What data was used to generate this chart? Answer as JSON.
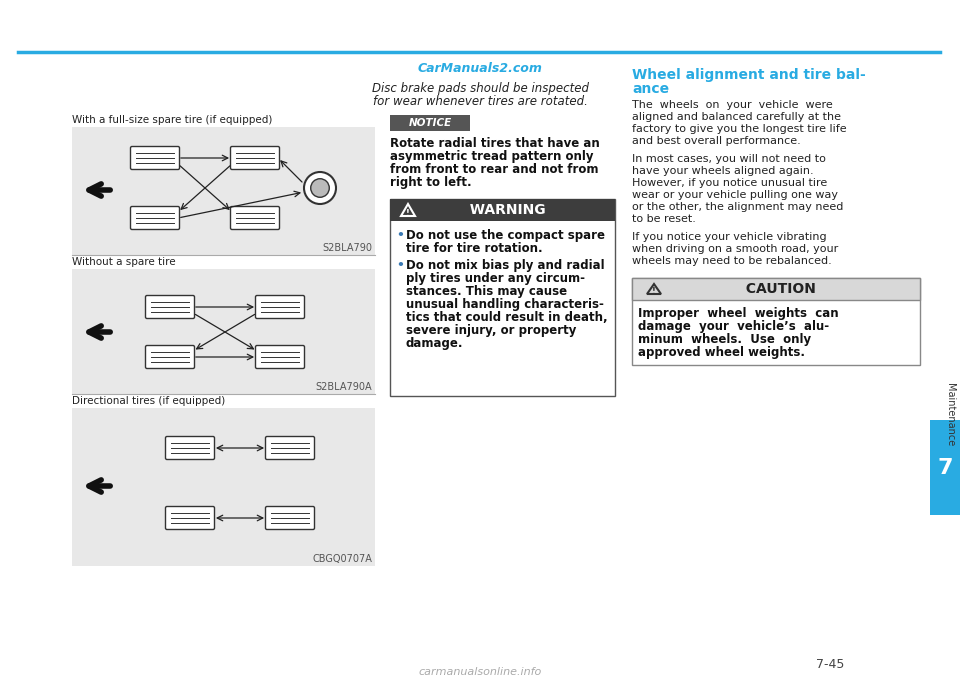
{
  "bg_color": "#ffffff",
  "top_line_color": "#29abe2",
  "right_tab_color": "#29abe2",
  "page_number": "7-45",
  "watermark_text": "CarManuals2.com",
  "watermark_color": "#29abe2",
  "italic_line1": "Disc brake pads should be inspected",
  "italic_line2": "for wear whenever tires are rotated.",
  "section1_label": "With a full-size spare tire (if equipped)",
  "section1_code": "S2BLA790",
  "section2_label": "Without a spare tire",
  "section2_code": "S2BLA790A",
  "section3_label": "Directional tires (if equipped)",
  "section3_code": "CBGQ0707A",
  "notice_text": "NOTICE",
  "notice_body_lines": [
    "Rotate radial tires that have an",
    "asymmetric tread pattern only",
    "from front to rear and not from",
    "right to left."
  ],
  "warning_title": "  WARNING",
  "warning_bullet1_lines": [
    "Do not use the compact spare",
    "tire for tire rotation."
  ],
  "warning_bullet2_lines": [
    "Do not mix bias ply and radial",
    "ply tires under any circum-",
    "stances. This may cause",
    "unusual handling characteris-",
    "tics that could result in death,",
    "severe injury, or property",
    "damage."
  ],
  "right_heading_line1": "Wheel alignment and tire bal-",
  "right_heading_line2": "ance",
  "right_heading_color": "#29abe2",
  "right_para1_lines": [
    "The  wheels  on  your  vehicle  were",
    "aligned and balanced carefully at the",
    "factory to give you the longest tire life",
    "and best overall performance."
  ],
  "right_para2_lines": [
    "In most cases, you will not need to",
    "have your wheels aligned again.",
    "However, if you notice unusual tire",
    "wear or your vehicle pulling one way",
    "or the other, the alignment may need",
    "to be reset."
  ],
  "right_para3_lines": [
    "If you notice your vehicle vibrating",
    "when driving on a smooth road, your",
    "wheels may need to be rebalanced."
  ],
  "caution_title": "  CAUTION",
  "caution_body_lines": [
    "Improper  wheel  weights  can",
    "damage  your  vehicle’s  alu-",
    "minum  wheels.  Use  only",
    "approved wheel weights."
  ],
  "sidebar_label": "Maintenance",
  "sidebar_number": "7",
  "page_num_text": "7-45",
  "footer_text": "carmanualsonline.info",
  "diagram_bg": "#e8e8e8",
  "tire_color": "#ffffff",
  "tire_line_color": "#333333"
}
